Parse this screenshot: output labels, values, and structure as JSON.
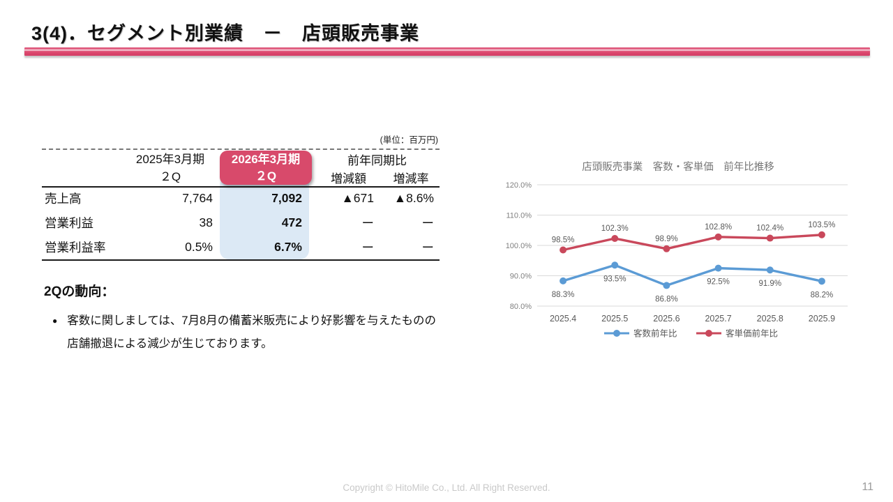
{
  "page": {
    "title": "3(4)．セグメント別業績　－　店頭販売事業",
    "footer": "Copyright © HitoMile Co., Ltd. All Right Reserved.",
    "page_number": "11"
  },
  "table": {
    "unit_label": "(単位：百万円)",
    "headers": {
      "prev_period_line1": "2025年3月期",
      "prev_period_line2": "２Q",
      "curr_period_line1": "2026年3月期",
      "curr_period_line2": "２Q",
      "yoy_group": "前年同期比",
      "diff_label": "増減額",
      "rate_label": "増減率"
    },
    "rows": [
      {
        "label": "売上高",
        "prev": "7,764",
        "curr": "7,092",
        "diff": "▲671",
        "rate": "▲8.6%"
      },
      {
        "label": "営業利益",
        "prev": "38",
        "curr": "472",
        "diff": "ー",
        "rate": "ー"
      },
      {
        "label": "営業利益率",
        "prev": "0.5%",
        "curr": "6.7%",
        "diff": "ー",
        "rate": "ー"
      }
    ]
  },
  "commentary": {
    "heading": "2Qの動向：",
    "bullet_marker": "●",
    "bullet_text": "客数に関しましては、7月8月の備蓄米販売により好影響を与えたものの店舗撤退による減少が生じております。"
  },
  "chart_data": {
    "type": "line",
    "title": "店頭販売事業　客数・客単価　前年比推移",
    "x": [
      "2025.4",
      "2025.5",
      "2025.6",
      "2025.7",
      "2025.8",
      "2025.9"
    ],
    "series": [
      {
        "name": "客数前年比",
        "color": "#5B9BD5",
        "values": [
          88.3,
          93.5,
          86.8,
          92.5,
          91.9,
          88.2
        ],
        "label_position": "below"
      },
      {
        "name": "客単価前年比",
        "color": "#C9485B",
        "values": [
          98.5,
          102.3,
          98.9,
          102.8,
          102.4,
          103.5
        ],
        "label_position": "above"
      }
    ],
    "ylim": [
      80,
      120
    ],
    "yticks": [
      80,
      90,
      100,
      110,
      120
    ],
    "ytick_labels": [
      "80.0%",
      "90.0%",
      "100.0%",
      "110.0%",
      "120.0%"
    ],
    "grid": "horizontal",
    "legend_position": "bottom"
  },
  "colors": {
    "accent_pink": "#D84A6B",
    "highlight_blue": "#DCE9F5",
    "series_blue": "#5B9BD5",
    "series_red": "#C9485B",
    "grid_gray": "#D9D9D9",
    "chart_text_gray": "#595959"
  }
}
